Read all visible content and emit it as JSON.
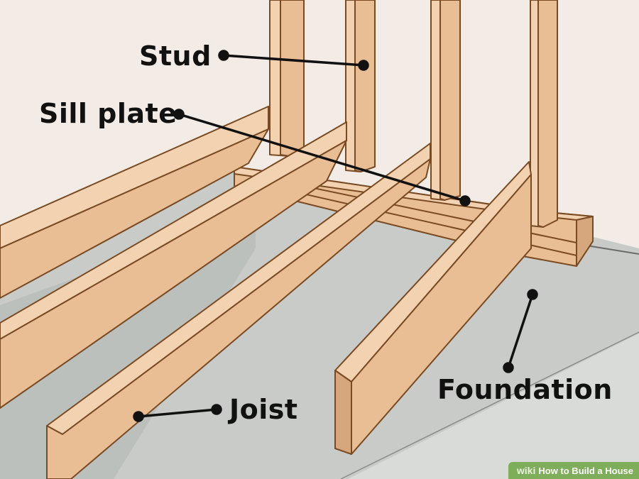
{
  "labels": {
    "stud": "Stud",
    "sill_plate": "Sill plate",
    "joist": "Joist",
    "foundation": "Foundation"
  },
  "watermark": {
    "brand": "wiki",
    "title": "How to Build a House"
  },
  "colors": {
    "wall": "#f3ece6",
    "foundation": "#c9cbc8",
    "wood_face": "#e9be95",
    "wood_top": "#f2d2b1",
    "wood_edge": "#7a4a22",
    "label": "#111111"
  }
}
